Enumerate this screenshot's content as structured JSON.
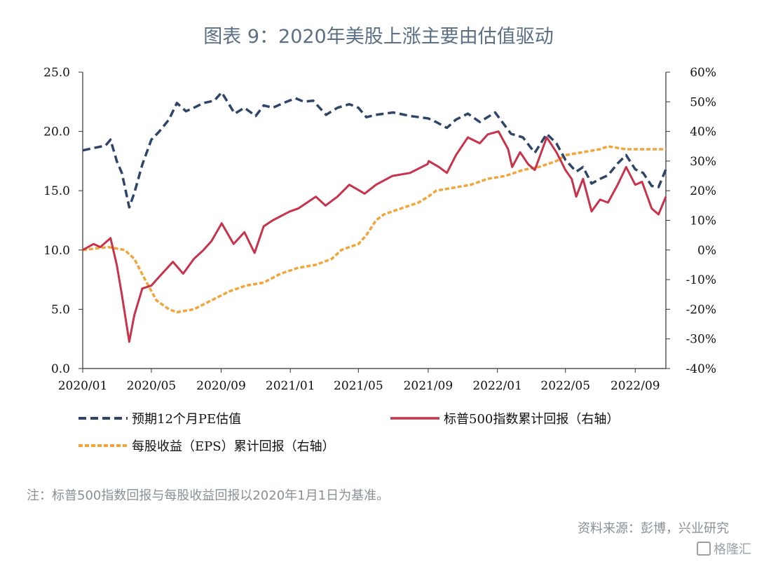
{
  "title": "图表 9：2020年美股上涨主要由估值驱动",
  "note": "注：标普500指数回报与每股收益回报以2020年1月1日为基准。",
  "source": "资料来源：彭博，兴业研究",
  "watermark": "格隆汇",
  "chart_data": {
    "type": "line",
    "x_ticks": [
      "2020/01",
      "2020/05",
      "2020/09",
      "2021/01",
      "2021/05",
      "2021/09",
      "2022/01",
      "2022/05",
      "2022/09"
    ],
    "x_range": [
      "2020-01-01",
      "2022-10-25"
    ],
    "left_axis": {
      "ticks": [
        "0.0",
        "5.0",
        "10.0",
        "15.0",
        "20.0",
        "25.0"
      ],
      "ylim": [
        0,
        25
      ]
    },
    "right_axis": {
      "ticks": [
        "-40%",
        "-30%",
        "-20%",
        "-10%",
        "0%",
        "10%",
        "20%",
        "30%",
        "40%",
        "50%",
        "60%"
      ],
      "ylim": [
        -40,
        60
      ]
    },
    "grid": false,
    "legend_position": "bottom",
    "series": [
      {
        "name": "预期12个月PE估值",
        "axis": "left",
        "color": "#2e4569",
        "style": "dashed",
        "points": [
          [
            "2020-01-01",
            18.4
          ],
          [
            "2020-01-20",
            18.6
          ],
          [
            "2020-02-10",
            18.8
          ],
          [
            "2020-02-19",
            19.3
          ],
          [
            "2020-03-01",
            17.5
          ],
          [
            "2020-03-10",
            16.5
          ],
          [
            "2020-03-23",
            13.6
          ],
          [
            "2020-04-01",
            14.8
          ],
          [
            "2020-04-15",
            17.2
          ],
          [
            "2020-05-01",
            19.3
          ],
          [
            "2020-05-15",
            20.0
          ],
          [
            "2020-06-01",
            21.0
          ],
          [
            "2020-06-15",
            22.4
          ],
          [
            "2020-07-01",
            21.7
          ],
          [
            "2020-07-15",
            22.0
          ],
          [
            "2020-08-01",
            22.4
          ],
          [
            "2020-08-20",
            22.6
          ],
          [
            "2020-09-02",
            23.3
          ],
          [
            "2020-09-25",
            21.5
          ],
          [
            "2020-10-12",
            22.0
          ],
          [
            "2020-11-01",
            21.3
          ],
          [
            "2020-11-15",
            22.2
          ],
          [
            "2020-12-01",
            22.0
          ],
          [
            "2020-12-20",
            22.4
          ],
          [
            "2021-01-10",
            22.8
          ],
          [
            "2021-01-25",
            22.5
          ],
          [
            "2021-02-10",
            22.6
          ],
          [
            "2021-03-05",
            21.4
          ],
          [
            "2021-03-25",
            22.0
          ],
          [
            "2021-04-15",
            22.3
          ],
          [
            "2021-05-01",
            22.0
          ],
          [
            "2021-05-15",
            21.2
          ],
          [
            "2021-06-01",
            21.4
          ],
          [
            "2021-07-01",
            21.6
          ],
          [
            "2021-08-01",
            21.3
          ],
          [
            "2021-09-01",
            21.1
          ],
          [
            "2021-09-15",
            20.8
          ],
          [
            "2021-10-04",
            20.3
          ],
          [
            "2021-10-20",
            21.0
          ],
          [
            "2021-11-10",
            21.5
          ],
          [
            "2021-12-01",
            20.8
          ],
          [
            "2021-12-28",
            21.6
          ],
          [
            "2022-01-25",
            19.8
          ],
          [
            "2022-02-15",
            19.5
          ],
          [
            "2022-03-08",
            18.2
          ],
          [
            "2022-03-29",
            19.8
          ],
          [
            "2022-04-15",
            19.0
          ],
          [
            "2022-05-01",
            17.6
          ],
          [
            "2022-05-20",
            16.6
          ],
          [
            "2022-06-01",
            17.0
          ],
          [
            "2022-06-16",
            15.6
          ],
          [
            "2022-07-01",
            16.0
          ],
          [
            "2022-07-15",
            16.3
          ],
          [
            "2022-08-01",
            17.3
          ],
          [
            "2022-08-16",
            18.0
          ],
          [
            "2022-09-01",
            16.8
          ],
          [
            "2022-09-15",
            16.5
          ],
          [
            "2022-09-30",
            15.4
          ],
          [
            "2022-10-12",
            15.3
          ],
          [
            "2022-10-25",
            16.8
          ]
        ]
      },
      {
        "name": "标普500指数累计回报（右轴）",
        "axis": "right",
        "color": "#c7334a",
        "style": "solid",
        "points": [
          [
            "2020-01-01",
            0
          ],
          [
            "2020-01-20",
            2
          ],
          [
            "2020-02-01",
            1
          ],
          [
            "2020-02-19",
            4
          ],
          [
            "2020-03-01",
            -5
          ],
          [
            "2020-03-10",
            -15
          ],
          [
            "2020-03-23",
            -31
          ],
          [
            "2020-04-01",
            -22
          ],
          [
            "2020-04-15",
            -13
          ],
          [
            "2020-05-01",
            -12
          ],
          [
            "2020-05-15",
            -9
          ],
          [
            "2020-06-08",
            -4
          ],
          [
            "2020-06-26",
            -8
          ],
          [
            "2020-07-15",
            -3
          ],
          [
            "2020-08-01",
            0
          ],
          [
            "2020-08-15",
            3
          ],
          [
            "2020-09-02",
            9
          ],
          [
            "2020-09-23",
            2
          ],
          [
            "2020-10-12",
            6
          ],
          [
            "2020-10-30",
            -1
          ],
          [
            "2020-11-15",
            8
          ],
          [
            "2020-12-01",
            10
          ],
          [
            "2020-12-31",
            13
          ],
          [
            "2021-01-15",
            14
          ],
          [
            "2021-02-15",
            18
          ],
          [
            "2021-03-04",
            15
          ],
          [
            "2021-03-25",
            18
          ],
          [
            "2021-04-15",
            22
          ],
          [
            "2021-05-12",
            19
          ],
          [
            "2021-06-01",
            22
          ],
          [
            "2021-06-30",
            25
          ],
          [
            "2021-07-31",
            26
          ],
          [
            "2021-08-31",
            29
          ],
          [
            "2021-09-02",
            30
          ],
          [
            "2021-09-20",
            28
          ],
          [
            "2021-10-04",
            26
          ],
          [
            "2021-10-20",
            32
          ],
          [
            "2021-11-10",
            38
          ],
          [
            "2021-12-01",
            36
          ],
          [
            "2021-12-15",
            39
          ],
          [
            "2022-01-03",
            40
          ],
          [
            "2022-01-20",
            34
          ],
          [
            "2022-01-27",
            28
          ],
          [
            "2022-02-10",
            33
          ],
          [
            "2022-02-24",
            29
          ],
          [
            "2022-03-08",
            27
          ],
          [
            "2022-03-29",
            38
          ],
          [
            "2022-04-15",
            33
          ],
          [
            "2022-05-01",
            27
          ],
          [
            "2022-05-12",
            24
          ],
          [
            "2022-05-20",
            18
          ],
          [
            "2022-06-01",
            24
          ],
          [
            "2022-06-16",
            13
          ],
          [
            "2022-07-01",
            17
          ],
          [
            "2022-07-15",
            16
          ],
          [
            "2022-08-01",
            22
          ],
          [
            "2022-08-16",
            28
          ],
          [
            "2022-09-01",
            22
          ],
          [
            "2022-09-13",
            23
          ],
          [
            "2022-09-30",
            14
          ],
          [
            "2022-10-12",
            12
          ],
          [
            "2022-10-25",
            18
          ]
        ]
      },
      {
        "name": "每股收益（EPS）累计回报（右轴）",
        "axis": "right",
        "color": "#f2a53a",
        "style": "dotted",
        "points": [
          [
            "2020-01-01",
            0
          ],
          [
            "2020-02-15",
            1
          ],
          [
            "2020-03-15",
            0
          ],
          [
            "2020-04-01",
            -3
          ],
          [
            "2020-04-20",
            -10
          ],
          [
            "2020-05-10",
            -17
          ],
          [
            "2020-06-01",
            -20
          ],
          [
            "2020-06-15",
            -21
          ],
          [
            "2020-07-15",
            -20
          ],
          [
            "2020-08-15",
            -17
          ],
          [
            "2020-09-15",
            -14
          ],
          [
            "2020-10-15",
            -12
          ],
          [
            "2020-11-15",
            -11
          ],
          [
            "2020-12-15",
            -8
          ],
          [
            "2021-01-15",
            -6
          ],
          [
            "2021-02-15",
            -5
          ],
          [
            "2021-03-15",
            -3
          ],
          [
            "2021-04-01",
            0
          ],
          [
            "2021-04-15",
            1
          ],
          [
            "2021-05-01",
            2
          ],
          [
            "2021-05-15",
            5
          ],
          [
            "2021-06-01",
            10
          ],
          [
            "2021-06-15",
            12
          ],
          [
            "2021-07-15",
            14
          ],
          [
            "2021-08-15",
            16
          ],
          [
            "2021-09-01",
            18
          ],
          [
            "2021-09-15",
            20
          ],
          [
            "2021-10-15",
            21
          ],
          [
            "2021-11-15",
            22
          ],
          [
            "2021-12-15",
            24
          ],
          [
            "2022-01-15",
            25
          ],
          [
            "2022-02-15",
            27
          ],
          [
            "2022-03-15",
            28
          ],
          [
            "2022-04-15",
            30
          ],
          [
            "2022-05-01",
            32
          ],
          [
            "2022-06-01",
            33
          ],
          [
            "2022-07-01",
            34
          ],
          [
            "2022-07-15",
            35
          ],
          [
            "2022-08-15",
            34
          ],
          [
            "2022-09-15",
            34
          ],
          [
            "2022-10-25",
            34
          ]
        ]
      }
    ]
  }
}
